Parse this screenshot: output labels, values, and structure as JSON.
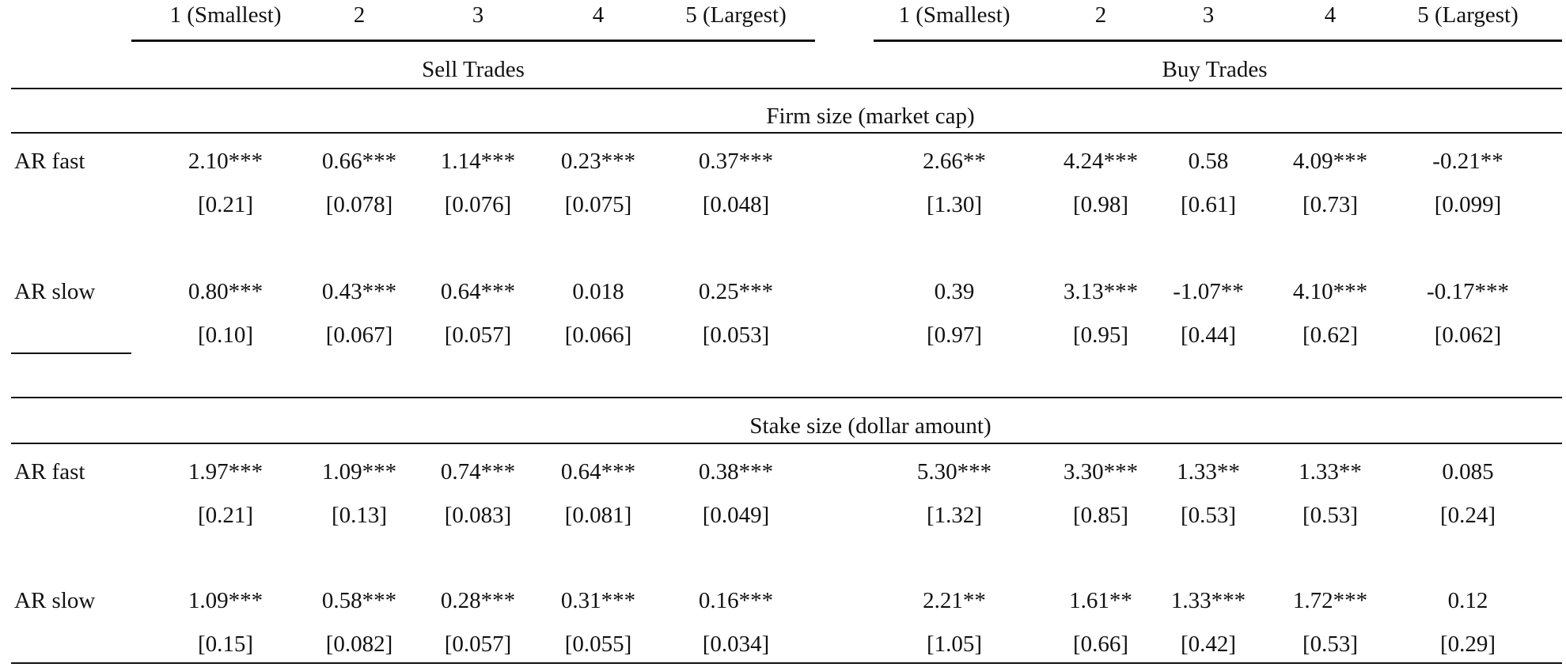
{
  "table": {
    "columns": [
      "1 (Smallest)",
      "2",
      "3",
      "4",
      "5 (Largest)",
      "1 (Smallest)",
      "2",
      "3",
      "4",
      "5 (Largest)"
    ],
    "groups": [
      "Sell Trades",
      "Buy Trades"
    ],
    "panels": [
      {
        "title": "Firm size (market cap)",
        "rows": [
          {
            "label": "AR fast",
            "coef": [
              "2.10***",
              "0.66***",
              "1.14***",
              "0.23***",
              "0.37***",
              "2.66**",
              "4.24***",
              "0.58",
              "4.09***",
              "-0.21**"
            ],
            "se": [
              "[0.21]",
              "[0.078]",
              "[0.076]",
              "[0.075]",
              "[0.048]",
              "[1.30]",
              "[0.98]",
              "[0.61]",
              "[0.73]",
              "[0.099]"
            ]
          },
          {
            "label": "AR slow",
            "coef": [
              "0.80***",
              "0.43***",
              "0.64***",
              "0.018",
              "0.25***",
              "0.39",
              "3.13***",
              "-1.07**",
              "4.10***",
              "-0.17***"
            ],
            "se": [
              "[0.10]",
              "[0.067]",
              "[0.057]",
              "[0.066]",
              "[0.053]",
              "[0.97]",
              "[0.95]",
              "[0.44]",
              "[0.62]",
              "[0.062]"
            ]
          }
        ]
      },
      {
        "title": "Stake size (dollar amount)",
        "rows": [
          {
            "label": "AR fast",
            "coef": [
              "1.97***",
              "1.09***",
              "0.74***",
              "0.64***",
              "0.38***",
              "5.30***",
              "3.30***",
              "1.33**",
              "1.33**",
              "0.085"
            ],
            "se": [
              "[0.21]",
              "[0.13]",
              "[0.083]",
              "[0.081]",
              "[0.049]",
              "[1.32]",
              "[0.85]",
              "[0.53]",
              "[0.53]",
              "[0.24]"
            ]
          },
          {
            "label": "AR slow",
            "coef": [
              "1.09***",
              "0.58***",
              "0.28***",
              "0.31***",
              "0.16***",
              "2.21**",
              "1.61**",
              "1.33***",
              "1.72***",
              "0.12"
            ],
            "se": [
              "[0.15]",
              "[0.082]",
              "[0.057]",
              "[0.055]",
              "[0.034]",
              "[1.05]",
              "[0.66]",
              "[0.42]",
              "[0.53]",
              "[0.29]"
            ]
          }
        ]
      }
    ]
  }
}
